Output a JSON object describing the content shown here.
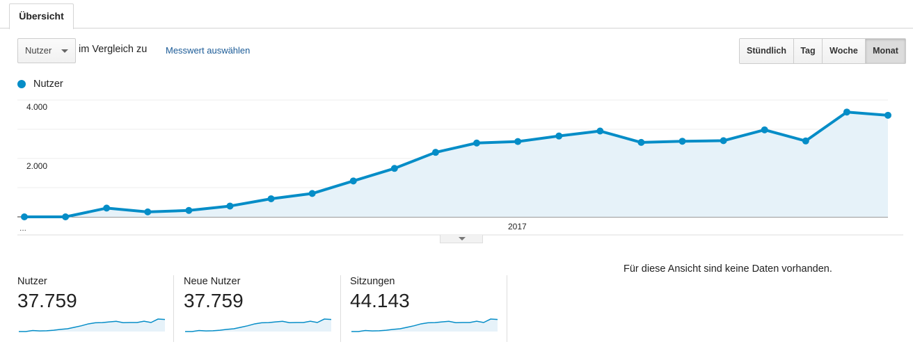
{
  "tab": {
    "label": "Übersicht"
  },
  "toolbar": {
    "metric": "Nutzer",
    "compare_label": "im Vergleich zu",
    "compare_link": "Messwert auswählen",
    "periods": [
      "Stündlich",
      "Tag",
      "Woche",
      "Monat"
    ],
    "active_period": "Monat"
  },
  "legend": {
    "label": "Nutzer",
    "color": "#058dc7"
  },
  "chart_data": {
    "type": "area",
    "title": "",
    "xlabel": "",
    "ylabel": "",
    "x_tick_labels": [
      "...",
      "2017"
    ],
    "y_tick_labels": [
      "4.000",
      "2.000"
    ],
    "ylim": [
      0,
      4000
    ],
    "grid": true,
    "legend": "top-left",
    "series": [
      {
        "name": "Nutzer",
        "color": "#058dc7",
        "values": [
          0,
          0,
          300,
          170,
          220,
          370,
          620,
          800,
          1230,
          1660,
          2210,
          2530,
          2580,
          2770,
          2940,
          2550,
          2590,
          2610,
          2980,
          2600,
          3590,
          3480
        ]
      }
    ]
  },
  "cards": [
    {
      "label": "Nutzer",
      "value": "37.759"
    },
    {
      "label": "Neue Nutzer",
      "value": "37.759"
    },
    {
      "label": "Sitzungen",
      "value": "44.143"
    }
  ],
  "no_data": "Für diese Ansicht sind keine Daten vorhanden."
}
